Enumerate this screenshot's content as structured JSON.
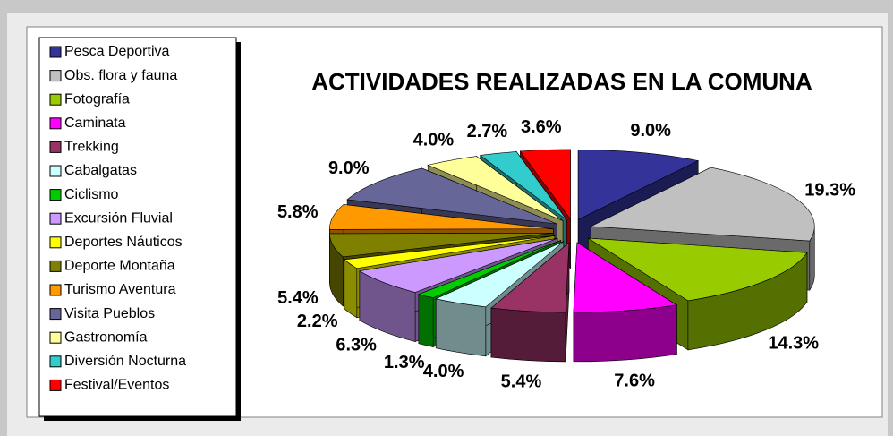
{
  "chart_data": {
    "type": "pie",
    "title": "ACTIVIDADES REALIZADAS EN LA COMUNA",
    "categories": [
      "Pesca Deportiva",
      "Obs. flora y fauna",
      "Fotografía",
      "Caminata",
      "Trekking",
      "Cabalgatas",
      "Ciclismo",
      "Excursión Fluvial",
      "Deportes Náuticos",
      "Deporte Montaña",
      "Turismo Aventura",
      "Visita Pueblos",
      "Gastronomía",
      "Diversión Nocturna",
      "Festival/Eventos"
    ],
    "values": [
      9.0,
      19.3,
      14.3,
      7.6,
      5.4,
      4.0,
      1.3,
      6.3,
      2.2,
      5.4,
      5.8,
      9.0,
      4.0,
      2.7,
      3.6
    ],
    "value_labels": [
      "9.0%",
      "19.3%",
      "14.3%",
      "7.6%",
      "5.4%",
      "4.0%",
      "1.3%",
      "6.3%",
      "2.2%",
      "5.4%",
      "5.8%",
      "9.0%",
      "4.0%",
      "2.7%",
      "3.6%"
    ],
    "colors": [
      "#333399",
      "#c0c0c0",
      "#99cc00",
      "#ff00ff",
      "#993366",
      "#ccffff",
      "#00cc00",
      "#cc99ff",
      "#ffff00",
      "#808000",
      "#ff9900",
      "#666699",
      "#ffff99",
      "#33cccc",
      "#ff0000"
    ],
    "legend": "left"
  }
}
